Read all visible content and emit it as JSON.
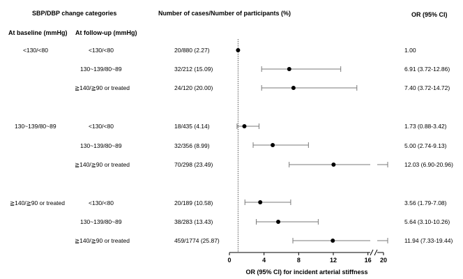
{
  "header": {
    "categories": "SBP/DBP change categories",
    "baseline": "At baseline (mmHg)",
    "followup": "At follow-up (mmHg)",
    "cases": "Number of cases/Number of participants (%)",
    "or": "OR (95% CI)"
  },
  "rows": [
    {
      "baseline": "<130/<80",
      "followup": "<130/<80",
      "cases": "20/880 (2.27)",
      "or_text": "1.00"
    },
    {
      "baseline": "",
      "followup": "130~139/80~89",
      "cases": "32/212 (15.09)",
      "or_text": "6.91 (3.72-12.86)"
    },
    {
      "baseline": "",
      "followup": "≧140/≧90 or treated",
      "cases": "24/120 (20.00)",
      "or_text": "7.40 (3.72-14.72)"
    },
    {
      "baseline": "130~139/80~89",
      "followup": "<130/<80",
      "cases": "18/435 (4.14)",
      "or_text": "1.73 (0.88-3.42)"
    },
    {
      "baseline": "",
      "followup": "130~139/80~89",
      "cases": "32/356 (8.99)",
      "or_text": "5.00 (2.74-9.13)"
    },
    {
      "baseline": "",
      "followup": "≧140/≧90 or treated",
      "cases": "70/298 (23.49)",
      "or_text": "12.03 (6.90-20.96)"
    },
    {
      "baseline": "≧140/≧90 or treated",
      "followup": "<130/<80",
      "cases": "20/189 (10.58)",
      "or_text": "3.56 (1.79-7.08)"
    },
    {
      "baseline": "",
      "followup": "130~139/80~89",
      "cases": "38/283 (13.43)",
      "or_text": "5.64 (3.10-10.26)"
    },
    {
      "baseline": "",
      "followup": "≧140/≧90 or treated",
      "cases": "459/1774 (25.87)",
      "or_text": "11.94 (7.33-19.44)"
    }
  ],
  "chart_data": {
    "type": "forest",
    "xlabel": "OR (95% CI) for incident arterial stiffness",
    "x_ticks": [
      "0",
      "4",
      "8",
      "12",
      "16",
      "20"
    ],
    "x_tick_values": [
      0,
      4,
      8,
      12,
      16,
      20
    ],
    "axis_break": true,
    "reference_line": 1,
    "points": [
      {
        "or": 1.0,
        "lo": 1.0,
        "hi": 1.0
      },
      {
        "or": 6.91,
        "lo": 3.72,
        "hi": 12.86
      },
      {
        "or": 7.4,
        "lo": 3.72,
        "hi": 14.72
      },
      {
        "or": 1.73,
        "lo": 0.88,
        "hi": 3.42
      },
      {
        "or": 5.0,
        "lo": 2.74,
        "hi": 9.13
      },
      {
        "or": 12.03,
        "lo": 6.9,
        "hi": 20.96
      },
      {
        "or": 3.56,
        "lo": 1.79,
        "hi": 7.08
      },
      {
        "or": 5.64,
        "lo": 3.1,
        "hi": 10.26
      },
      {
        "or": 11.94,
        "lo": 7.33,
        "hi": 19.44
      }
    ],
    "colors": {
      "marker": "#000000",
      "ci": "#7a7a7a",
      "axis": "#000000",
      "reference": "#555555"
    }
  }
}
